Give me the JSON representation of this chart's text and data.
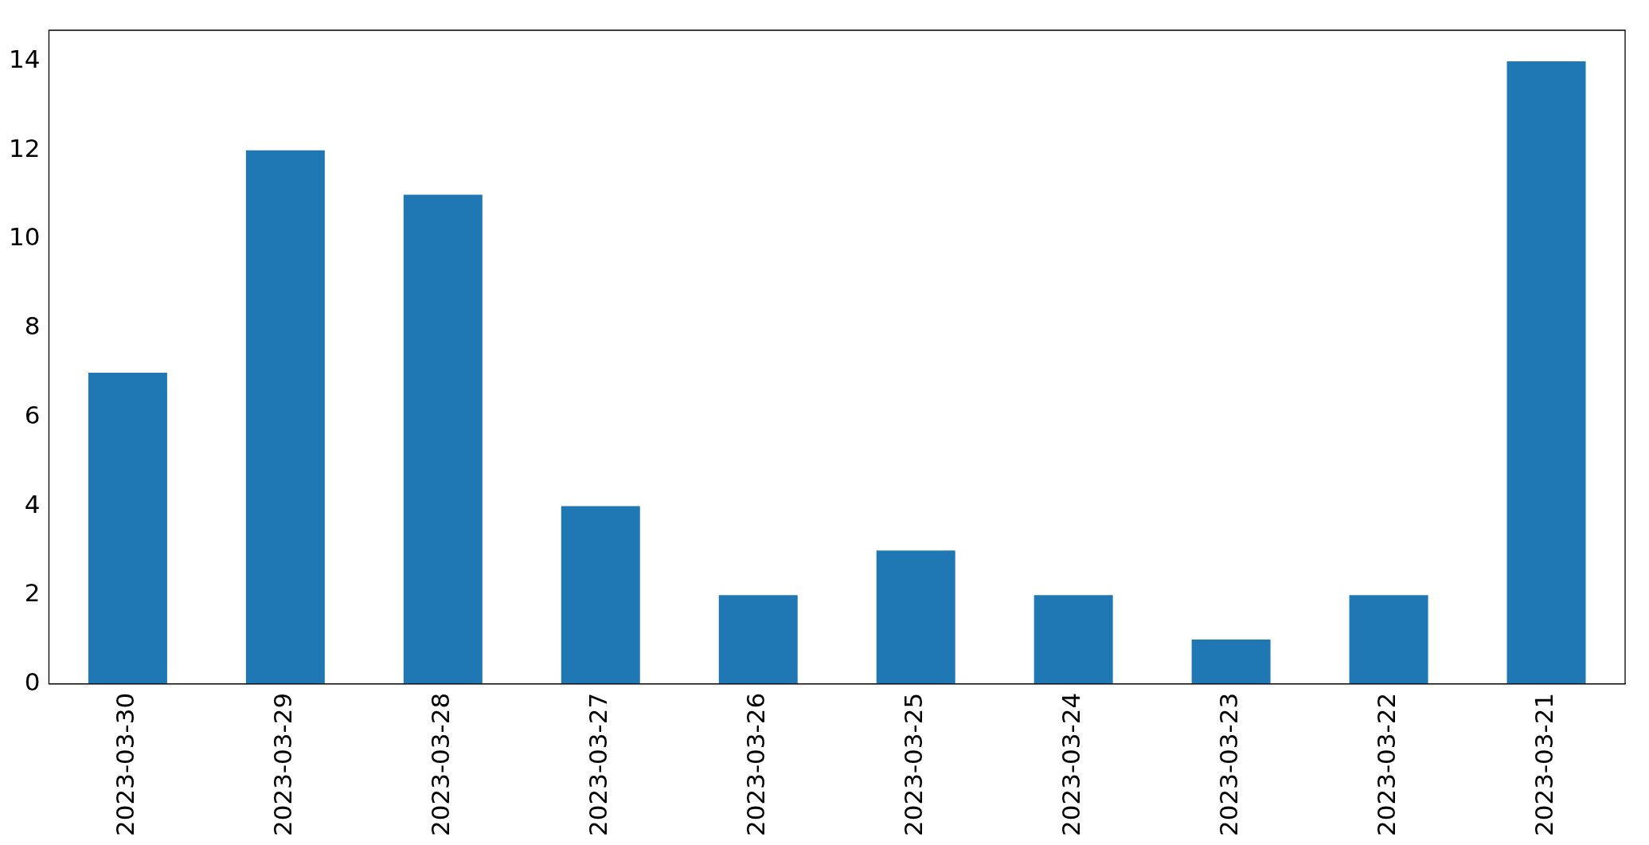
{
  "chart_data": {
    "type": "bar",
    "categories": [
      "2023-03-30",
      "2023-03-29",
      "2023-03-28",
      "2023-03-27",
      "2023-03-26",
      "2023-03-25",
      "2023-03-24",
      "2023-03-23",
      "2023-03-22",
      "2023-03-21"
    ],
    "values": [
      7,
      12,
      11,
      4,
      2,
      3,
      2,
      1,
      2,
      14
    ],
    "color": "#1f77b4",
    "ylim": [
      0,
      14.7
    ],
    "yticks": [
      0,
      2,
      4,
      6,
      8,
      10,
      12,
      14
    ],
    "grid": false,
    "legend": false
  }
}
